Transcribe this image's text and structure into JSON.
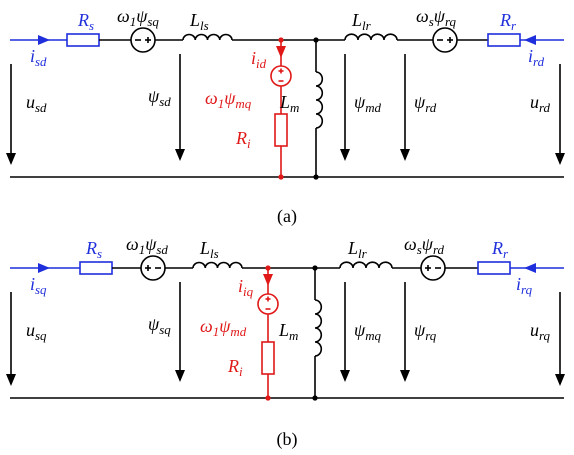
{
  "colors": {
    "wire": "#000000",
    "input": "#1f2fdc",
    "core_loss": "#e01818"
  },
  "circuit_a": {
    "caption": "(a)",
    "stator_resistor": {
      "base": "R",
      "sub": "s"
    },
    "stator_source": {
      "base": "ω",
      "sub": "1",
      "base2": "ψ",
      "sub2": "sq"
    },
    "stator_leakage": {
      "base": "L",
      "sub": "ls"
    },
    "rotor_leakage": {
      "base": "L",
      "sub": "lr"
    },
    "rotor_source": {
      "base": "ω",
      "sub": "s",
      "base2": "ψ",
      "sub2": "rq"
    },
    "rotor_resistor": {
      "base": "R",
      "sub": "r"
    },
    "stator_current": {
      "base": "i",
      "sub": "sd"
    },
    "rotor_current": {
      "base": "i",
      "sub": "rd"
    },
    "stator_voltage": {
      "base": "u",
      "sub": "sd"
    },
    "rotor_voltage": {
      "base": "u",
      "sub": "rd"
    },
    "stator_flux": {
      "base": "ψ",
      "sub": "sd"
    },
    "mutual_flux": {
      "base": "ψ",
      "sub": "md"
    },
    "rotor_flux": {
      "base": "ψ",
      "sub": "rd"
    },
    "core_current": {
      "base": "i",
      "sub": "id"
    },
    "core_source": {
      "base": "ω",
      "sub": "1",
      "base2": "ψ",
      "sub2": "mq"
    },
    "core_resistor": {
      "base": "R",
      "sub": "i"
    },
    "magnetizing_inductance": {
      "base": "L",
      "sub": "m"
    }
  },
  "circuit_b": {
    "caption": "(b)",
    "stator_resistor": {
      "base": "R",
      "sub": "s"
    },
    "stator_source": {
      "base": "ω",
      "sub": "1",
      "base2": "ψ",
      "sub2": "sd"
    },
    "stator_leakage": {
      "base": "L",
      "sub": "ls"
    },
    "rotor_leakage": {
      "base": "L",
      "sub": "lr"
    },
    "rotor_source": {
      "base": "ω",
      "sub": "s",
      "base2": "ψ",
      "sub2": "rd"
    },
    "rotor_resistor": {
      "base": "R",
      "sub": "r"
    },
    "stator_current": {
      "base": "i",
      "sub": "sq"
    },
    "rotor_current": {
      "base": "i",
      "sub": "rq"
    },
    "stator_voltage": {
      "base": "u",
      "sub": "sq"
    },
    "rotor_voltage": {
      "base": "u",
      "sub": "rq"
    },
    "stator_flux": {
      "base": "ψ",
      "sub": "sq"
    },
    "mutual_flux": {
      "base": "ψ",
      "sub": "mq"
    },
    "rotor_flux": {
      "base": "ψ",
      "sub": "rq"
    },
    "core_current": {
      "base": "i",
      "sub": "iq"
    },
    "core_source": {
      "base": "ω",
      "sub": "1",
      "base2": "ψ",
      "sub2": "md"
    },
    "core_resistor": {
      "base": "R",
      "sub": "i"
    },
    "magnetizing_inductance": {
      "base": "L",
      "sub": "m"
    }
  }
}
